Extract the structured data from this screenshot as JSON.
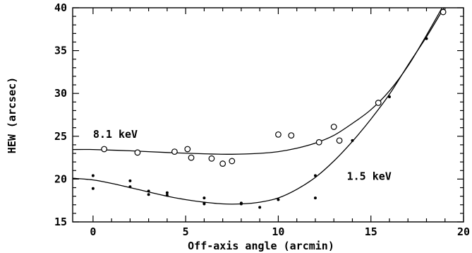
{
  "chart_data": {
    "type": "scatter",
    "xlabel": "Off-axis angle (arcmin)",
    "ylabel": "HEW (arcsec)",
    "xlim": [
      -1.1,
      20
    ],
    "ylim": [
      15,
      40
    ],
    "xticks": [
      0,
      5,
      10,
      15,
      20
    ],
    "yticks": [
      15,
      20,
      25,
      30,
      35,
      40
    ],
    "grid": false,
    "series": [
      {
        "name": "8.1 keV",
        "marker": "open-circle",
        "points": [
          [
            0.6,
            23.5
          ],
          [
            2.4,
            23.1
          ],
          [
            4.4,
            23.2
          ],
          [
            5.1,
            23.5
          ],
          [
            5.3,
            22.5
          ],
          [
            6.4,
            22.4
          ],
          [
            7.0,
            21.8
          ],
          [
            7.5,
            22.1
          ],
          [
            10.0,
            25.2
          ],
          [
            10.7,
            25.1
          ],
          [
            12.2,
            24.3
          ],
          [
            13.0,
            26.1
          ],
          [
            13.3,
            24.5
          ],
          [
            15.4,
            28.9
          ],
          [
            18.9,
            39.5
          ]
        ],
        "fit": [
          [
            -1.1,
            23.45
          ],
          [
            0,
            23.45
          ],
          [
            2,
            23.3
          ],
          [
            4,
            23.1
          ],
          [
            6,
            22.95
          ],
          [
            7.5,
            22.9
          ],
          [
            9,
            23.0
          ],
          [
            10,
            23.2
          ],
          [
            11,
            23.6
          ],
          [
            12,
            24.2
          ],
          [
            13,
            25.1
          ],
          [
            14,
            26.5
          ],
          [
            15,
            28.1
          ],
          [
            16,
            30.3
          ],
          [
            17,
            33.2
          ],
          [
            18,
            36.8
          ],
          [
            19,
            40.6
          ]
        ]
      },
      {
        "name": "1.5 keV",
        "marker": "filled-dot",
        "points": [
          [
            0,
            20.4
          ],
          [
            0,
            18.9
          ],
          [
            2,
            19.8
          ],
          [
            2,
            19.1
          ],
          [
            3,
            18.6
          ],
          [
            3,
            18.2
          ],
          [
            4,
            18.4
          ],
          [
            4,
            18.1
          ],
          [
            6,
            17.8
          ],
          [
            6,
            17.2
          ],
          [
            6,
            17.1
          ],
          [
            8,
            17.2
          ],
          [
            8,
            17.1
          ],
          [
            9,
            16.7
          ],
          [
            10,
            17.6
          ],
          [
            12,
            20.4
          ],
          [
            12,
            17.8
          ],
          [
            14,
            24.5
          ],
          [
            16,
            29.6
          ],
          [
            18,
            36.4
          ]
        ],
        "fit": [
          [
            -1.1,
            20.1
          ],
          [
            0,
            19.9
          ],
          [
            1,
            19.5
          ],
          [
            2,
            19.0
          ],
          [
            3,
            18.5
          ],
          [
            4,
            18.0
          ],
          [
            5,
            17.6
          ],
          [
            6,
            17.3
          ],
          [
            7,
            17.1
          ],
          [
            8,
            17.1
          ],
          [
            9,
            17.3
          ],
          [
            10,
            17.8
          ],
          [
            11,
            18.8
          ],
          [
            12,
            20.2
          ],
          [
            13,
            22.1
          ],
          [
            14,
            24.4
          ],
          [
            15,
            27.0
          ],
          [
            16,
            29.9
          ],
          [
            17,
            33.3
          ],
          [
            18,
            36.6
          ],
          [
            19,
            40.2
          ]
        ]
      }
    ],
    "annotations": [
      {
        "text": "8.1 keV",
        "at": [
          0,
          24.8
        ]
      },
      {
        "text": "1.5 keV",
        "at": [
          13.7,
          19.9
        ]
      }
    ]
  }
}
